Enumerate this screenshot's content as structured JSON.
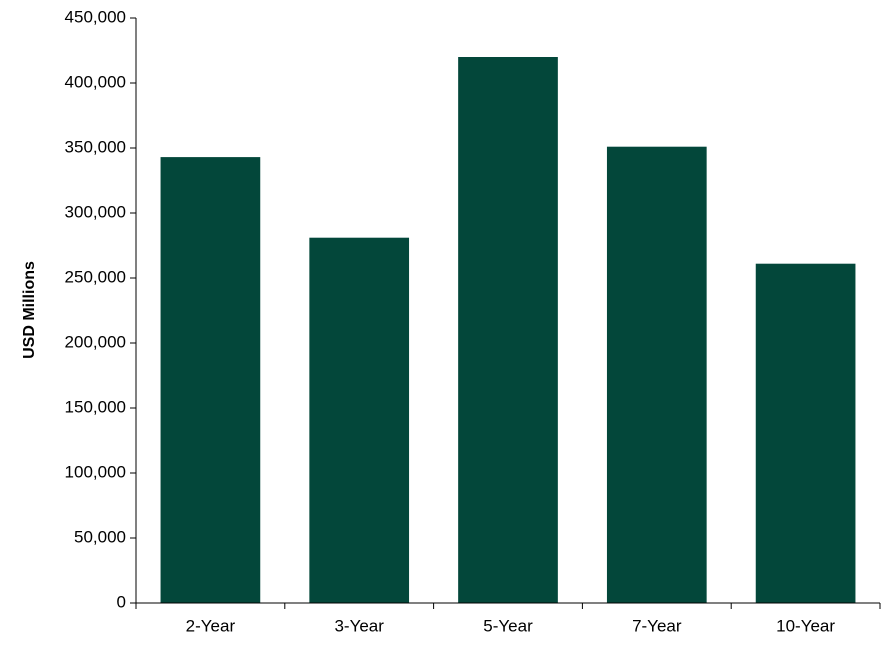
{
  "chart_data": {
    "type": "bar",
    "y_label": "USD Millions",
    "categories": [
      "2-Year",
      "3-Year",
      "5-Year",
      "7-Year",
      "10-Year"
    ],
    "values": [
      343000,
      281000,
      420000,
      351000,
      261000
    ],
    "color": "#03473a",
    "ylim": [
      0,
      450000
    ],
    "yticks": [
      0,
      {
        "value": 50000,
        "label": "50,000"
      },
      {
        "value": 100000,
        "label": "100,000"
      },
      {
        "value": 150000,
        "label": "150,000"
      },
      {
        "value": 200000,
        "label": "200,000"
      },
      {
        "value": 250000,
        "label": "250,000"
      },
      {
        "value": 300000,
        "label": "300,000"
      },
      {
        "value": 350000,
        "label": "350,000"
      },
      {
        "value": 400000,
        "label": "400,000"
      },
      {
        "value": 450000,
        "label": "450,000"
      }
    ],
    "grid": false
  }
}
